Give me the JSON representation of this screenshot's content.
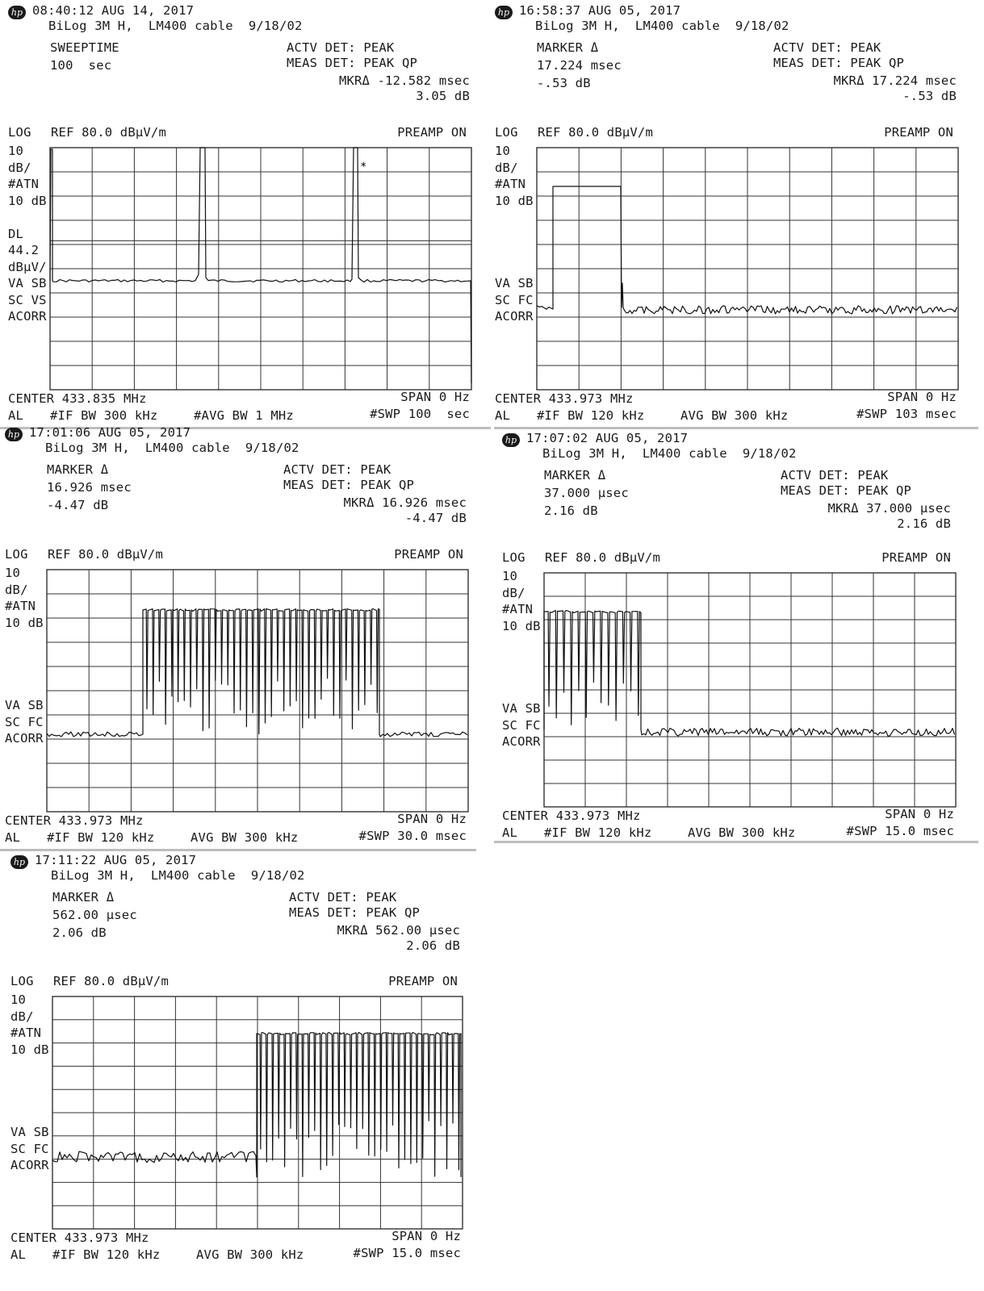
{
  "screens": [
    {
      "header": {
        "timestamp": "08:40:12 AUG 14, 2017",
        "setup": "BiLog 3M H,  LM400 cable  9/18/02",
        "left1": "SWEEPTIME",
        "left2": "100  sec",
        "left3": "",
        "det1": "ACTV DET: PEAK",
        "det2": "MEAS DET: PEAK QP",
        "mkr1": "MKRΔ -12.582 msec",
        "mkr2": "3.05 dB"
      },
      "scale": {
        "mode": "LOG",
        "ref": "REF 80.0 dBµV/m",
        "preamp": "PREAMP ON",
        "left_labels": [
          "10",
          "dB/",
          "#ATN",
          "10 dB",
          "",
          "DL",
          "44.2",
          "dBµV/",
          "VA SB",
          "SC VS",
          "ACORR"
        ],
        "star": "*"
      },
      "footer": {
        "center": "CENTER 433.835 MHz",
        "span": "SPAN 0 Hz",
        "mode": "AL",
        "ifbw": "#IF BW 300 kHz",
        "avgbw": "#AVG BW 1 MHz",
        "swp": "#SWP 100  sec"
      }
    },
    {
      "header": {
        "timestamp": "16:58:37 AUG 05, 2017",
        "setup": "BiLog 3M H,  LM400 cable  9/18/02",
        "left1": "MARKER Δ",
        "left2": "17.224 msec",
        "left3": "-.53 dB",
        "det1": "ACTV DET: PEAK",
        "det2": "MEAS DET: PEAK QP",
        "mkr1": "MKRΔ 17.224 msec",
        "mkr2": "-.53 dB"
      },
      "scale": {
        "mode": "LOG",
        "ref": "REF 80.0 dBµV/m",
        "preamp": "PREAMP ON",
        "left_labels": [
          "10",
          "dB/",
          "#ATN",
          "10 dB",
          "",
          "",
          "",
          "",
          "VA SB",
          "SC FC",
          "ACORR"
        ],
        "star": ""
      },
      "footer": {
        "center": "CENTER 433.973 MHz",
        "span": "SPAN 0 Hz",
        "mode": "AL",
        "ifbw": "#IF BW 120 kHz",
        "avgbw": "AVG BW 300 kHz",
        "swp": "#SWP 103 msec"
      }
    },
    {
      "header": {
        "timestamp": "17:01:06 AUG 05, 2017",
        "setup": "BiLog 3M H,  LM400 cable  9/18/02",
        "left1": "MARKER Δ",
        "left2": "16.926 msec",
        "left3": "-4.47 dB",
        "det1": "ACTV DET: PEAK",
        "det2": "MEAS DET: PEAK QP",
        "mkr1": "MKRΔ 16.926 msec",
        "mkr2": "-4.47 dB"
      },
      "scale": {
        "mode": "LOG",
        "ref": "REF 80.0 dBµV/m",
        "preamp": "PREAMP ON",
        "left_labels": [
          "10",
          "dB/",
          "#ATN",
          "10 dB",
          "",
          "",
          "",
          "",
          "VA SB",
          "SC FC",
          "ACORR"
        ],
        "star": ""
      },
      "footer": {
        "center": "CENTER 433.973 MHz",
        "span": "SPAN 0 Hz",
        "mode": "AL",
        "ifbw": "#IF BW 120 kHz",
        "avgbw": "AVG BW 300 kHz",
        "swp": "#SWP 30.0 msec"
      }
    },
    {
      "header": {
        "timestamp": "17:07:02 AUG 05, 2017",
        "setup": "BiLog 3M H,  LM400 cable  9/18/02",
        "left1": "MARKER Δ",
        "left2": "37.000 µsec",
        "left3": "2.16 dB",
        "det1": "ACTV DET: PEAK",
        "det2": "MEAS DET: PEAK QP",
        "mkr1": "MKRΔ 37.000 µsec",
        "mkr2": "2.16 dB"
      },
      "scale": {
        "mode": "LOG",
        "ref": "REF 80.0 dBµV/m",
        "preamp": "PREAMP ON",
        "left_labels": [
          "10",
          "dB/",
          "#ATN",
          "10 dB",
          "",
          "",
          "",
          "",
          "VA SB",
          "SC FC",
          "ACORR"
        ],
        "star": ""
      },
      "footer": {
        "center": "CENTER 433.973 MHz",
        "span": "SPAN 0 Hz",
        "mode": "AL",
        "ifbw": "#IF BW 120 kHz",
        "avgbw": "AVG BW 300 kHz",
        "swp": "#SWP 15.0 msec"
      }
    },
    {
      "header": {
        "timestamp": "17:11:22 AUG 05, 2017",
        "setup": "BiLog 3M H,  LM400 cable  9/18/02",
        "left1": "MARKER Δ",
        "left2": "562.00 µsec",
        "left3": "2.06 dB",
        "det1": "ACTV DET: PEAK",
        "det2": "MEAS DET: PEAK QP",
        "mkr1": "MKRΔ 562.00 µsec",
        "mkr2": "2.06 dB"
      },
      "scale": {
        "mode": "LOG",
        "ref": "REF 80.0 dBµV/m",
        "preamp": "PREAMP ON",
        "left_labels": [
          "10",
          "dB/",
          "#ATN",
          "10 dB",
          "",
          "",
          "",
          "",
          "VA SB",
          "SC FC",
          "ACORR"
        ],
        "star": ""
      },
      "footer": {
        "center": "CENTER 433.973 MHz",
        "span": "SPAN 0 Hz",
        "mode": "AL",
        "ifbw": "#IF BW 120 kHz",
        "avgbw": "AVG BW 300 kHz",
        "swp": "#SWP 15.0 msec"
      }
    }
  ],
  "logo_text": "hp",
  "chart_data": [
    {
      "type": "line",
      "title": "",
      "xlabel": "",
      "ylabel": "",
      "x_unit": "sec",
      "xlim": [
        0,
        100
      ],
      "ylim": [
        -20,
        80
      ],
      "grid": true,
      "sweep_time": "100 sec",
      "display_line_dBuV_m": 44.2,
      "series": [
        {
          "name": "",
          "points": [
            [
              0,
              44
            ],
            [
              1,
              80
            ],
            [
              2,
              44
            ],
            [
              36,
              44
            ],
            [
              36.2,
              47
            ],
            [
              36.6,
              80
            ],
            [
              37.4,
              80
            ],
            [
              37.7,
              45
            ],
            [
              73,
              44
            ],
            [
              73.4,
              80
            ],
            [
              74.2,
              80
            ],
            [
              74.5,
              45
            ],
            [
              99.5,
              44
            ],
            [
              100,
              0
            ]
          ]
        }
      ]
    },
    {
      "type": "line",
      "title": "",
      "xlabel": "",
      "ylabel": "",
      "x_unit": "msec",
      "xlim": [
        0,
        103
      ],
      "ylim": [
        -20,
        80
      ],
      "grid": true,
      "sweep_time": "103 msec",
      "series": [
        {
          "name": "",
          "points": [
            [
              0,
              30
            ],
            [
              3,
              31
            ],
            [
              4,
              70
            ],
            [
              20,
              70.5
            ],
            [
              21,
              30
            ],
            [
              21.3,
              36
            ],
            [
              21.6,
              30
            ],
            [
              60,
              29
            ],
            [
              103,
              30
            ]
          ]
        }
      ]
    },
    {
      "type": "line",
      "title": "",
      "xlabel": "",
      "ylabel": "",
      "x_unit": "msec",
      "xlim": [
        0,
        30
      ],
      "ylim": [
        -20,
        80
      ],
      "grid": true,
      "sweep_time": "30.0 msec",
      "series": [
        {
          "name": "",
          "points": [
            [
              0,
              30
            ],
            [
              6.9,
              30
            ],
            [
              7.0,
              72
            ],
            [
              23.4,
              72
            ],
            [
              23.7,
              30
            ],
            [
              30,
              30
            ]
          ]
        }
      ]
    },
    {
      "type": "line",
      "title": "",
      "xlabel": "",
      "ylabel": "",
      "x_unit": "msec",
      "xlim": [
        0,
        15
      ],
      "ylim": [
        -20,
        80
      ],
      "grid": true,
      "sweep_time": "15.0 msec",
      "series": [
        {
          "name": "",
          "points": [
            [
              0,
              72
            ],
            [
              3.6,
              72
            ],
            [
              3.65,
              30
            ],
            [
              15,
              30
            ]
          ]
        }
      ]
    },
    {
      "type": "line",
      "title": "",
      "xlabel": "",
      "ylabel": "",
      "x_unit": "msec",
      "xlim": [
        0,
        15
      ],
      "ylim": [
        -20,
        80
      ],
      "grid": true,
      "sweep_time": "15.0 msec",
      "series": [
        {
          "name": "",
          "points": [
            [
              0,
              30
            ],
            [
              7.2,
              30
            ],
            [
              7.3,
              70
            ],
            [
              15,
              70
            ]
          ]
        }
      ]
    }
  ]
}
